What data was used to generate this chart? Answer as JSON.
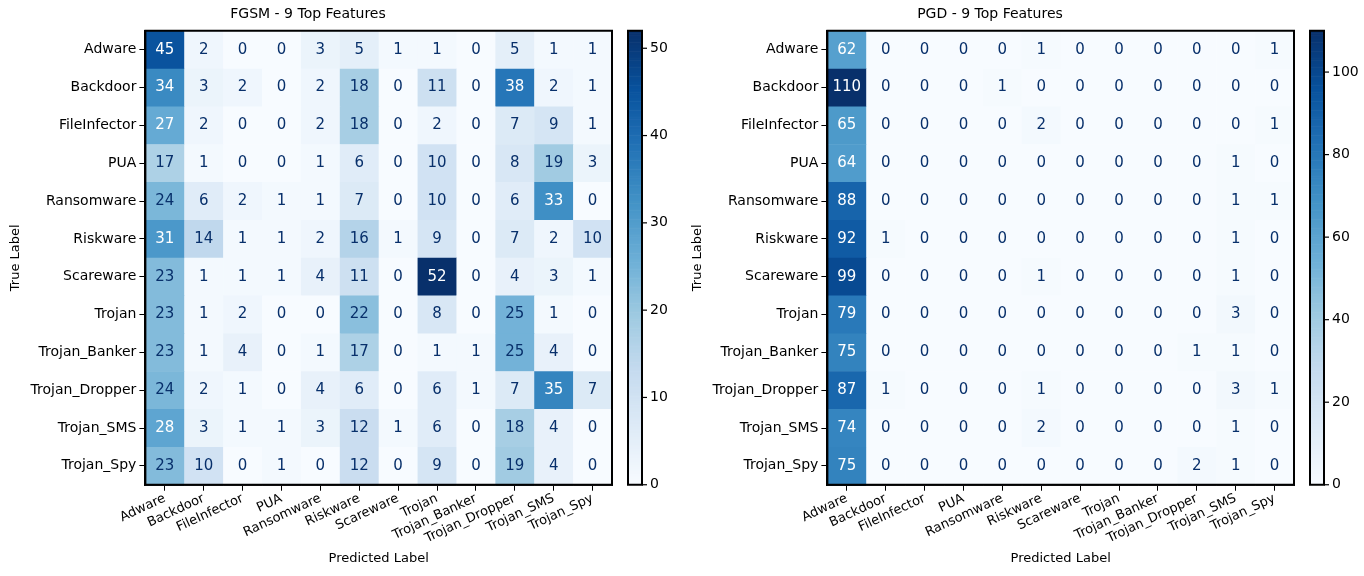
{
  "chart_data": [
    {
      "type": "heatmap",
      "title": "FGSM - 9 Top Features",
      "xlabel": "Predicted Label",
      "ylabel": "True Label",
      "categories": [
        "Adware",
        "Backdoor",
        "FileInfector",
        "PUA",
        "Ransomware",
        "Riskware",
        "Scareware",
        "Trojan",
        "Trojan_Banker",
        "Trojan_Dropper",
        "Trojan_SMS",
        "Trojan_Spy"
      ],
      "y_categories": [
        "Adware",
        "Backdoor",
        "FileInfector",
        "PUA",
        "Ransomware",
        "Riskware",
        "Scareware",
        "Trojan",
        "Trojan_Banker",
        "Trojan_Dropper",
        "Trojan_SMS",
        "Trojan_Spy"
      ],
      "cells": [
        [
          45,
          2,
          0,
          0,
          3,
          5,
          1,
          1,
          0,
          5,
          1,
          1
        ],
        [
          34,
          3,
          2,
          0,
          2,
          18,
          0,
          11,
          0,
          38,
          2,
          1
        ],
        [
          27,
          2,
          0,
          0,
          2,
          18,
          0,
          2,
          0,
          7,
          9,
          1
        ],
        [
          17,
          1,
          0,
          0,
          1,
          6,
          0,
          10,
          0,
          8,
          19,
          3
        ],
        [
          24,
          6,
          2,
          1,
          1,
          7,
          0,
          10,
          0,
          6,
          33,
          0
        ],
        [
          31,
          14,
          1,
          1,
          2,
          16,
          1,
          9,
          0,
          7,
          2,
          10
        ],
        [
          23,
          1,
          1,
          1,
          4,
          11,
          0,
          52,
          0,
          4,
          3,
          1
        ],
        [
          23,
          1,
          2,
          0,
          0,
          22,
          0,
          8,
          0,
          25,
          1,
          0
        ],
        [
          23,
          1,
          4,
          0,
          1,
          17,
          0,
          1,
          1,
          25,
          4,
          0
        ],
        [
          24,
          2,
          1,
          0,
          4,
          6,
          0,
          6,
          1,
          7,
          35,
          7
        ],
        [
          28,
          3,
          1,
          1,
          3,
          12,
          1,
          6,
          0,
          18,
          4,
          0
        ],
        [
          23,
          10,
          0,
          1,
          0,
          12,
          0,
          9,
          0,
          19,
          4,
          0
        ]
      ],
      "clim": [
        0,
        52
      ],
      "cticks": [
        0,
        10,
        20,
        30,
        40,
        50
      ],
      "data_labels": true
    },
    {
      "type": "heatmap",
      "title": "PGD - 9 Top Features",
      "xlabel": "Predicted Label",
      "ylabel": "True Label",
      "categories": [
        "Adware",
        "Backdoor",
        "FileInfector",
        "PUA",
        "Ransomware",
        "Riskware",
        "Scareware",
        "Trojan",
        "Trojan_Banker",
        "Trojan_Dropper",
        "Trojan_SMS",
        "Trojan_Spy"
      ],
      "y_categories": [
        "Adware",
        "Backdoor",
        "FileInfector",
        "PUA",
        "Ransomware",
        "Riskware",
        "Scareware",
        "Trojan",
        "Trojan_Banker",
        "Trojan_Dropper",
        "Trojan_SMS",
        "Trojan_Spy"
      ],
      "cells": [
        [
          62,
          0,
          0,
          0,
          0,
          1,
          0,
          0,
          0,
          0,
          0,
          1
        ],
        [
          110,
          0,
          0,
          0,
          1,
          0,
          0,
          0,
          0,
          0,
          0,
          0
        ],
        [
          65,
          0,
          0,
          0,
          0,
          2,
          0,
          0,
          0,
          0,
          0,
          1
        ],
        [
          64,
          0,
          0,
          0,
          0,
          0,
          0,
          0,
          0,
          0,
          1,
          0
        ],
        [
          88,
          0,
          0,
          0,
          0,
          0,
          0,
          0,
          0,
          0,
          1,
          1
        ],
        [
          92,
          1,
          0,
          0,
          0,
          0,
          0,
          0,
          0,
          0,
          1,
          0
        ],
        [
          99,
          0,
          0,
          0,
          0,
          1,
          0,
          0,
          0,
          0,
          1,
          0
        ],
        [
          79,
          0,
          0,
          0,
          0,
          0,
          0,
          0,
          0,
          0,
          3,
          0
        ],
        [
          75,
          0,
          0,
          0,
          0,
          0,
          0,
          0,
          0,
          1,
          1,
          0
        ],
        [
          87,
          1,
          0,
          0,
          0,
          1,
          0,
          0,
          0,
          0,
          3,
          1
        ],
        [
          74,
          0,
          0,
          0,
          0,
          2,
          0,
          0,
          0,
          0,
          1,
          0
        ],
        [
          75,
          0,
          0,
          0,
          0,
          0,
          0,
          0,
          0,
          2,
          1,
          0
        ]
      ],
      "clim": [
        0,
        110
      ],
      "cticks": [
        0,
        20,
        40,
        60,
        80,
        100
      ],
      "data_labels": true
    }
  ]
}
